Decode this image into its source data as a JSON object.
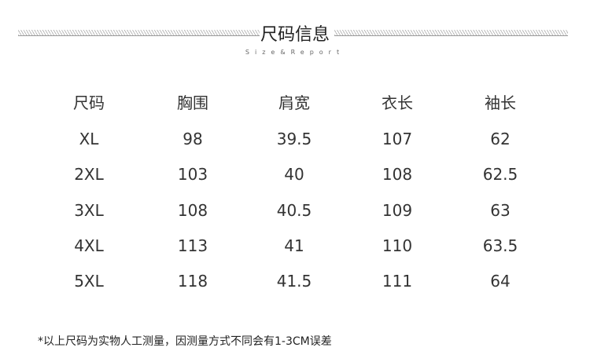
{
  "title": "尺码信息",
  "subtitle": "Size&Report",
  "table": {
    "headers": [
      "尺码",
      "胸围",
      "肩宽",
      "衣长",
      "袖长"
    ],
    "rows": [
      [
        "XL",
        "98",
        "39.5",
        "107",
        "62"
      ],
      [
        "2XL",
        "103",
        "40",
        "108",
        "62.5"
      ],
      [
        "3XL",
        "108",
        "40.5",
        "109",
        "63"
      ],
      [
        "4XL",
        "113",
        "41",
        "110",
        "63.5"
      ],
      [
        "5XL",
        "118",
        "41.5",
        "111",
        "64"
      ]
    ]
  },
  "note": "*以上尺码为实物人工测量，因测量方式不同会有1-3CM误差"
}
